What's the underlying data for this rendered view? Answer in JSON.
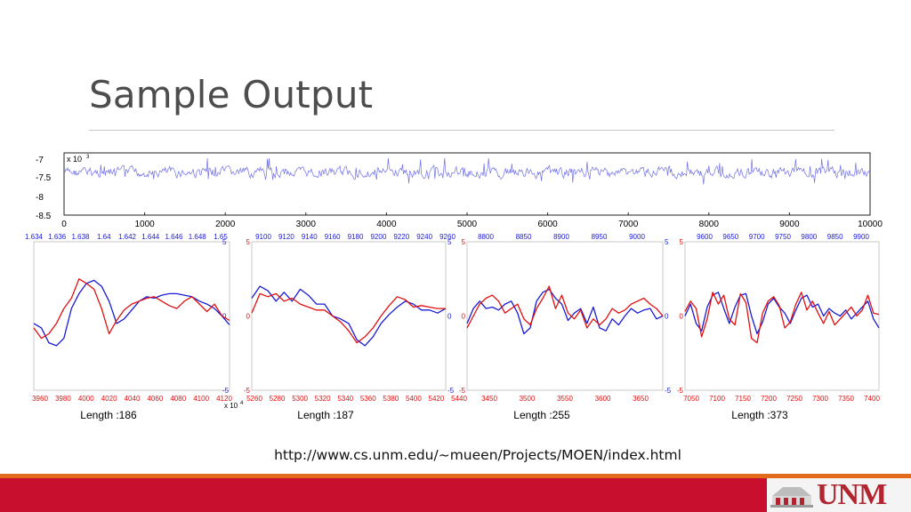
{
  "slide": {
    "title": "Sample Output",
    "source_url": "http://www.cs.unm.edu/~mueen/Projects/MOEN/index.html",
    "logo_text": "UNM"
  },
  "colors": {
    "series_blue": "#1a1ad6",
    "series_red": "#e01010",
    "overview_line": "#6f6fe8",
    "footer_red": "#c8102e",
    "footer_orange": "#e36a1b"
  },
  "chart_data": [
    {
      "type": "line",
      "name": "overview",
      "y_multiplier_label": "x 10",
      "y_multiplier_exp": "3",
      "yticks": [
        "-7",
        "-7.5",
        "-8",
        "-8.5"
      ],
      "ylim": [
        -8.5,
        -7
      ],
      "xlim": [
        0,
        10000
      ],
      "xticks": [
        "0",
        "1000",
        "2000",
        "3000",
        "4000",
        "5000",
        "6000",
        "7000",
        "8000",
        "9000",
        "10000"
      ],
      "series": [
        {
          "values": []
        }
      ]
    },
    {
      "type": "line",
      "name": "motif-1",
      "length_label": "Length :186",
      "top_ticks": [
        "1.634",
        "1.636",
        "1.638",
        "1.64",
        "1.642",
        "1.644",
        "1.646",
        "1.648",
        "1.65"
      ],
      "top_multiplier_label": "x 10",
      "top_multiplier_exp": "4",
      "bottom_ticks": [
        "3960",
        "3980",
        "4000",
        "4020",
        "4040",
        "4060",
        "4080",
        "4100",
        "4120"
      ],
      "left_ticks": [
        "",
        "",
        ""
      ],
      "right_ticks": [
        "5",
        "0",
        "-5"
      ],
      "ylim": [
        -5,
        5
      ],
      "series": [
        {
          "color": "blue",
          "values": [
            -0.5,
            -0.8,
            -1.8,
            -2.0,
            -1.5,
            0.5,
            1.5,
            2.2,
            2.4,
            2.0,
            1.0,
            -0.5,
            -0.2,
            0.4,
            1.0,
            1.3,
            1.2,
            1.4,
            1.5,
            1.5,
            1.4,
            1.3,
            1.0,
            0.8,
            0.5,
            0.0,
            -0.6
          ]
        },
        {
          "color": "red",
          "values": [
            -0.8,
            -1.5,
            -1.2,
            -0.5,
            0.5,
            1.2,
            2.5,
            2.2,
            1.8,
            0.5,
            -1.2,
            -0.3,
            0.4,
            0.8,
            1.0,
            1.2,
            1.3,
            1.0,
            0.7,
            0.5,
            1.0,
            1.3,
            0.8,
            0.3,
            0.8,
            0.0,
            -0.3
          ]
        }
      ]
    },
    {
      "type": "line",
      "name": "motif-2",
      "length_label": "Length :187",
      "top_ticks": [
        "9100",
        "9120",
        "9140",
        "9160",
        "9180",
        "9200",
        "9220",
        "9240",
        "9260"
      ],
      "bottom_ticks": [
        "5260",
        "5280",
        "5300",
        "5320",
        "5340",
        "5360",
        "5380",
        "5400",
        "5420",
        "5440"
      ],
      "left_ticks": [
        "5",
        "0",
        "-5"
      ],
      "right_ticks": [
        "5",
        "0",
        "-5"
      ],
      "ylim": [
        -5,
        5
      ],
      "series": [
        {
          "color": "blue",
          "values": [
            1.2,
            2.0,
            1.7,
            1.0,
            1.6,
            1.0,
            1.8,
            1.4,
            0.8,
            0.8,
            0.0,
            -0.2,
            -0.5,
            -1.6,
            -2.0,
            -1.4,
            -0.5,
            0.1,
            0.6,
            1.0,
            0.8,
            0.4,
            0.4,
            0.2,
            0.5
          ]
        },
        {
          "color": "red",
          "values": [
            0.2,
            1.5,
            1.3,
            1.5,
            1.0,
            1.2,
            0.8,
            0.6,
            0.4,
            0.4,
            0.0,
            -0.4,
            -1.0,
            -1.8,
            -1.4,
            -0.8,
            0.0,
            0.7,
            1.3,
            1.1,
            0.6,
            0.7,
            0.6,
            0.5,
            0.5
          ]
        }
      ]
    },
    {
      "type": "line",
      "name": "motif-3",
      "length_label": "Length :255",
      "top_ticks": [
        "8800",
        "8850",
        "8900",
        "8950",
        "9000"
      ],
      "bottom_ticks": [
        "3450",
        "3500",
        "3550",
        "3600",
        "3650"
      ],
      "left_ticks": [
        "5",
        "0",
        "-5"
      ],
      "right_ticks": [
        "5",
        "0",
        "-5"
      ],
      "ylim": [
        -5,
        5
      ],
      "series": [
        {
          "color": "blue",
          "values": [
            -0.5,
            0.5,
            1.0,
            0.5,
            0.6,
            0.4,
            0.8,
            1.0,
            0.2,
            -1.2,
            -0.8,
            1.0,
            1.6,
            1.8,
            1.2,
            0.8,
            -0.3,
            0.2,
            0.5,
            -0.5,
            0.6,
            -0.8,
            -1.0,
            -0.2,
            -0.6,
            0.0,
            0.5,
            0.2,
            0.4,
            0.5,
            -0.2,
            0.0
          ]
        },
        {
          "color": "red",
          "values": [
            -0.8,
            0.0,
            0.8,
            1.2,
            1.4,
            1.0,
            0.2,
            0.5,
            0.8,
            -0.2,
            -0.6,
            0.5,
            1.2,
            2.0,
            0.5,
            1.4,
            0.2,
            -0.2,
            0.4,
            -0.8,
            -0.2,
            -0.6,
            -0.2,
            0.5,
            0.2,
            0.4,
            0.8,
            1.0,
            1.2,
            0.8,
            0.5,
            0.0
          ]
        }
      ]
    },
    {
      "type": "line",
      "name": "motif-4",
      "length_label": "Length :373",
      "top_ticks": [
        "9600",
        "9650",
        "9700",
        "9750",
        "9800",
        "9850",
        "9900"
      ],
      "bottom_ticks": [
        "7050",
        "7100",
        "7150",
        "7200",
        "7250",
        "7300",
        "7350",
        "7400"
      ],
      "left_ticks": [
        "5",
        "0",
        "-5"
      ],
      "right_ticks": [
        "",
        "",
        ""
      ],
      "ylim": [
        -5,
        5
      ],
      "series": [
        {
          "color": "blue",
          "values": [
            0.0,
            0.8,
            -0.5,
            -1.0,
            0.6,
            1.4,
            1.6,
            0.5,
            -0.5,
            0.6,
            1.4,
            1.5,
            0.0,
            -1.2,
            -0.4,
            0.8,
            1.2,
            0.6,
            0.2,
            -0.5,
            0.4,
            1.2,
            1.4,
            0.6,
            0.8,
            0.0,
            0.5,
            0.2,
            0.0,
            0.4,
            -0.2,
            0.2,
            0.6,
            1.0,
            -0.2,
            -0.8
          ]
        },
        {
          "color": "red",
          "values": [
            0.3,
            1.0,
            0.5,
            -1.4,
            -0.2,
            1.6,
            0.8,
            1.4,
            -0.2,
            -0.6,
            1.5,
            0.9,
            -1.5,
            -1.8,
            0.2,
            1.0,
            1.3,
            0.7,
            -0.8,
            -0.4,
            0.8,
            1.6,
            0.4,
            1.0,
            0.2,
            -0.5,
            0.3,
            -0.6,
            -0.2,
            0.2,
            0.6,
            0.0,
            0.4,
            1.4,
            0.2,
            0.1
          ]
        }
      ]
    }
  ]
}
